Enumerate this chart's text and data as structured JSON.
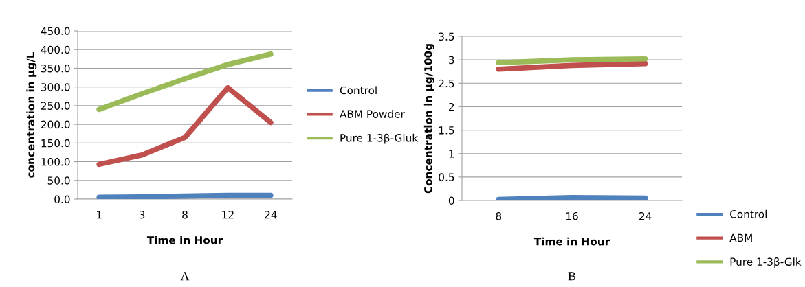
{
  "chart_data": [
    {
      "type": "line",
      "xlabel": "Time in Hour",
      "ylabel": "concentration in µg/L",
      "categories": [
        "1",
        "3",
        "8",
        "12",
        "24"
      ],
      "series": [
        {
          "name": "Control",
          "color": "#4f81bd",
          "values": [
            5,
            6,
            8,
            10,
            10
          ]
        },
        {
          "name": "ABM Powder",
          "color": "#c0504d",
          "values": [
            93,
            118,
            165,
            298,
            205
          ]
        },
        {
          "name": "Pure 1-3β-Gluk",
          "color": "#9bbb59",
          "values": [
            240,
            282,
            322,
            360,
            388
          ]
        }
      ],
      "ylim": [
        0,
        450
      ],
      "yticks": [
        {
          "value": 0,
          "label": "0.0"
        },
        {
          "value": 50,
          "label": "50.0"
        },
        {
          "value": 100,
          "label": "100.0"
        },
        {
          "value": 150,
          "label": "150.0"
        },
        {
          "value": 200,
          "label": "200.0"
        },
        {
          "value": 250,
          "label": "250.0"
        },
        {
          "value": 300,
          "label": "300.0"
        },
        {
          "value": 350,
          "label": "350.0"
        },
        {
          "value": 400,
          "label": "400.0"
        },
        {
          "value": 450,
          "label": "450.0"
        }
      ],
      "grid": "y",
      "legend": "right",
      "marker": "none",
      "line_style": "solid",
      "annotations": [
        "A"
      ]
    },
    {
      "type": "line",
      "xlabel": "Time in Hour",
      "ylabel": "Concentration in µg/100g",
      "categories": [
        "8",
        "16",
        "24"
      ],
      "series": [
        {
          "name": "Control",
          "color": "#4f81bd",
          "values": [
            0.02,
            0.06,
            0.05
          ]
        },
        {
          "name": "ABM",
          "color": "#c0504d",
          "values": [
            2.8,
            2.88,
            2.92
          ]
        },
        {
          "name": "Pure 1-3β-Glk",
          "color": "#9bbb59",
          "values": [
            2.94,
            3.0,
            3.02
          ]
        }
      ],
      "ylim": [
        0,
        3.5
      ],
      "yticks": [
        0,
        0.5,
        1,
        1.5,
        2,
        2.5,
        3,
        3.5
      ],
      "grid": "y",
      "legend": "bottom right",
      "marker": "none",
      "line_style": "solid",
      "annotations": [
        "B"
      ]
    }
  ]
}
